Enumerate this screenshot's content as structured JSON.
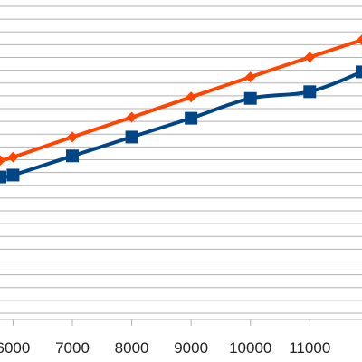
{
  "chart_data": {
    "type": "line",
    "grid": true,
    "xlim": [
      5780,
      11880
    ],
    "ylim": [
      0,
      100
    ],
    "x_ticks": [
      6000,
      7000,
      8000,
      9000,
      10000,
      11000
    ],
    "x_tick_labels": [
      "6000",
      "7000",
      "8000",
      "9000",
      "10000",
      "11000"
    ],
    "y_gridlines": [
      2,
      6,
      10,
      14,
      18,
      22,
      26,
      30,
      34,
      38,
      42,
      46,
      50,
      54,
      58,
      62,
      66,
      70,
      74,
      78,
      82,
      86,
      90,
      94,
      98
    ],
    "series": [
      {
        "color": "#ff4500",
        "marker": "diamond-icon",
        "points": [
          [
            5780,
            49.8
          ],
          [
            6000,
            50.8
          ],
          [
            7000,
            57.1
          ],
          [
            8000,
            63.3
          ],
          [
            9000,
            69.6
          ],
          [
            10000,
            75.9
          ],
          [
            11000,
            82.1
          ],
          [
            11880,
            87.5
          ]
        ]
      },
      {
        "color": "#004586",
        "marker": "square-icon",
        "points": [
          [
            5780,
            44.6
          ],
          [
            6000,
            45.2
          ],
          [
            7000,
            51.2
          ],
          [
            8000,
            57.1
          ],
          [
            9000,
            63.0
          ],
          [
            10000,
            69.2
          ],
          [
            11000,
            71.3
          ],
          [
            11880,
            77.5
          ]
        ]
      }
    ]
  }
}
